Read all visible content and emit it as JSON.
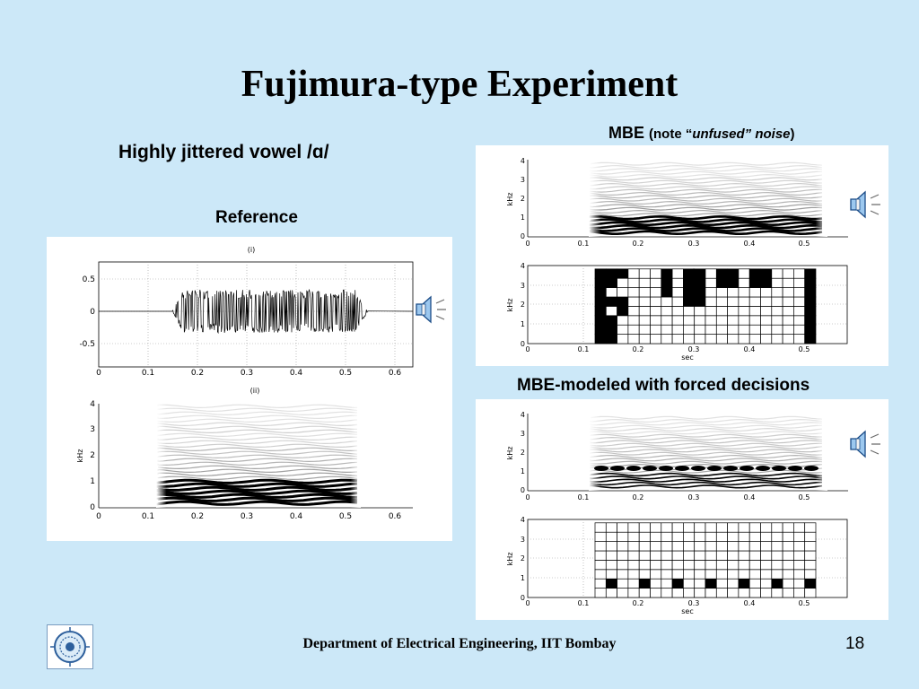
{
  "slide": {
    "title": "Fujimura-type Experiment",
    "subtitle": "Highly jittered vowel  /ɑ/",
    "reference_label": "Reference",
    "mbe_label": "MBE",
    "mbe_note_open": "(note “",
    "mbe_note_em": "unfused” noise",
    "mbe_note_close": ")",
    "forced_label": "MBE-modeled with forced decisions",
    "footer": "Department of Electrical Engineering, IIT Bombay",
    "page_number": "18"
  },
  "reference": {
    "waveform": {
      "panel_label": "(i)",
      "y_ticks": [
        "0.5",
        "0",
        "-0.5"
      ],
      "x_ticks": [
        "0",
        "0.1",
        "0.2",
        "0.3",
        "0.4",
        "0.5",
        "0.6"
      ]
    },
    "spectrogram": {
      "panel_label": "(ii)",
      "ylabel": "kHz",
      "y_ticks": [
        "4",
        "3",
        "2",
        "1",
        "0"
      ],
      "x_ticks": [
        "0",
        "0.1",
        "0.2",
        "0.3",
        "0.4",
        "0.5",
        "0.6"
      ]
    }
  },
  "mbe": {
    "spectrogram": {
      "ylabel": "kHz",
      "y_ticks": [
        "4",
        "3",
        "2",
        "1",
        "0"
      ],
      "x_ticks": [
        "0",
        "0.1",
        "0.2",
        "0.3",
        "0.4",
        "0.5"
      ]
    },
    "decisions": {
      "ylabel": "kHz",
      "xlabel": "sec",
      "y_ticks": [
        "4",
        "3",
        "2",
        "1",
        "0"
      ],
      "x_ticks": [
        "0",
        "0.1",
        "0.2",
        "0.3",
        "0.4",
        "0.5"
      ]
    }
  },
  "forced": {
    "spectrogram": {
      "ylabel": "kHz",
      "y_ticks": [
        "4",
        "3",
        "2",
        "1",
        "0"
      ],
      "x_ticks": [
        "0",
        "0.1",
        "0.2",
        "0.3",
        "0.4",
        "0.5"
      ]
    },
    "decisions": {
      "ylabel": "kHz",
      "xlabel": "sec",
      "y_ticks": [
        "4",
        "3",
        "2",
        "1",
        "0"
      ],
      "x_ticks": [
        "0",
        "0.1",
        "0.2",
        "0.3",
        "0.4",
        "0.5"
      ]
    }
  },
  "icons": {
    "audio": "speaker-icon",
    "logo": "iit-bombay-logo"
  }
}
